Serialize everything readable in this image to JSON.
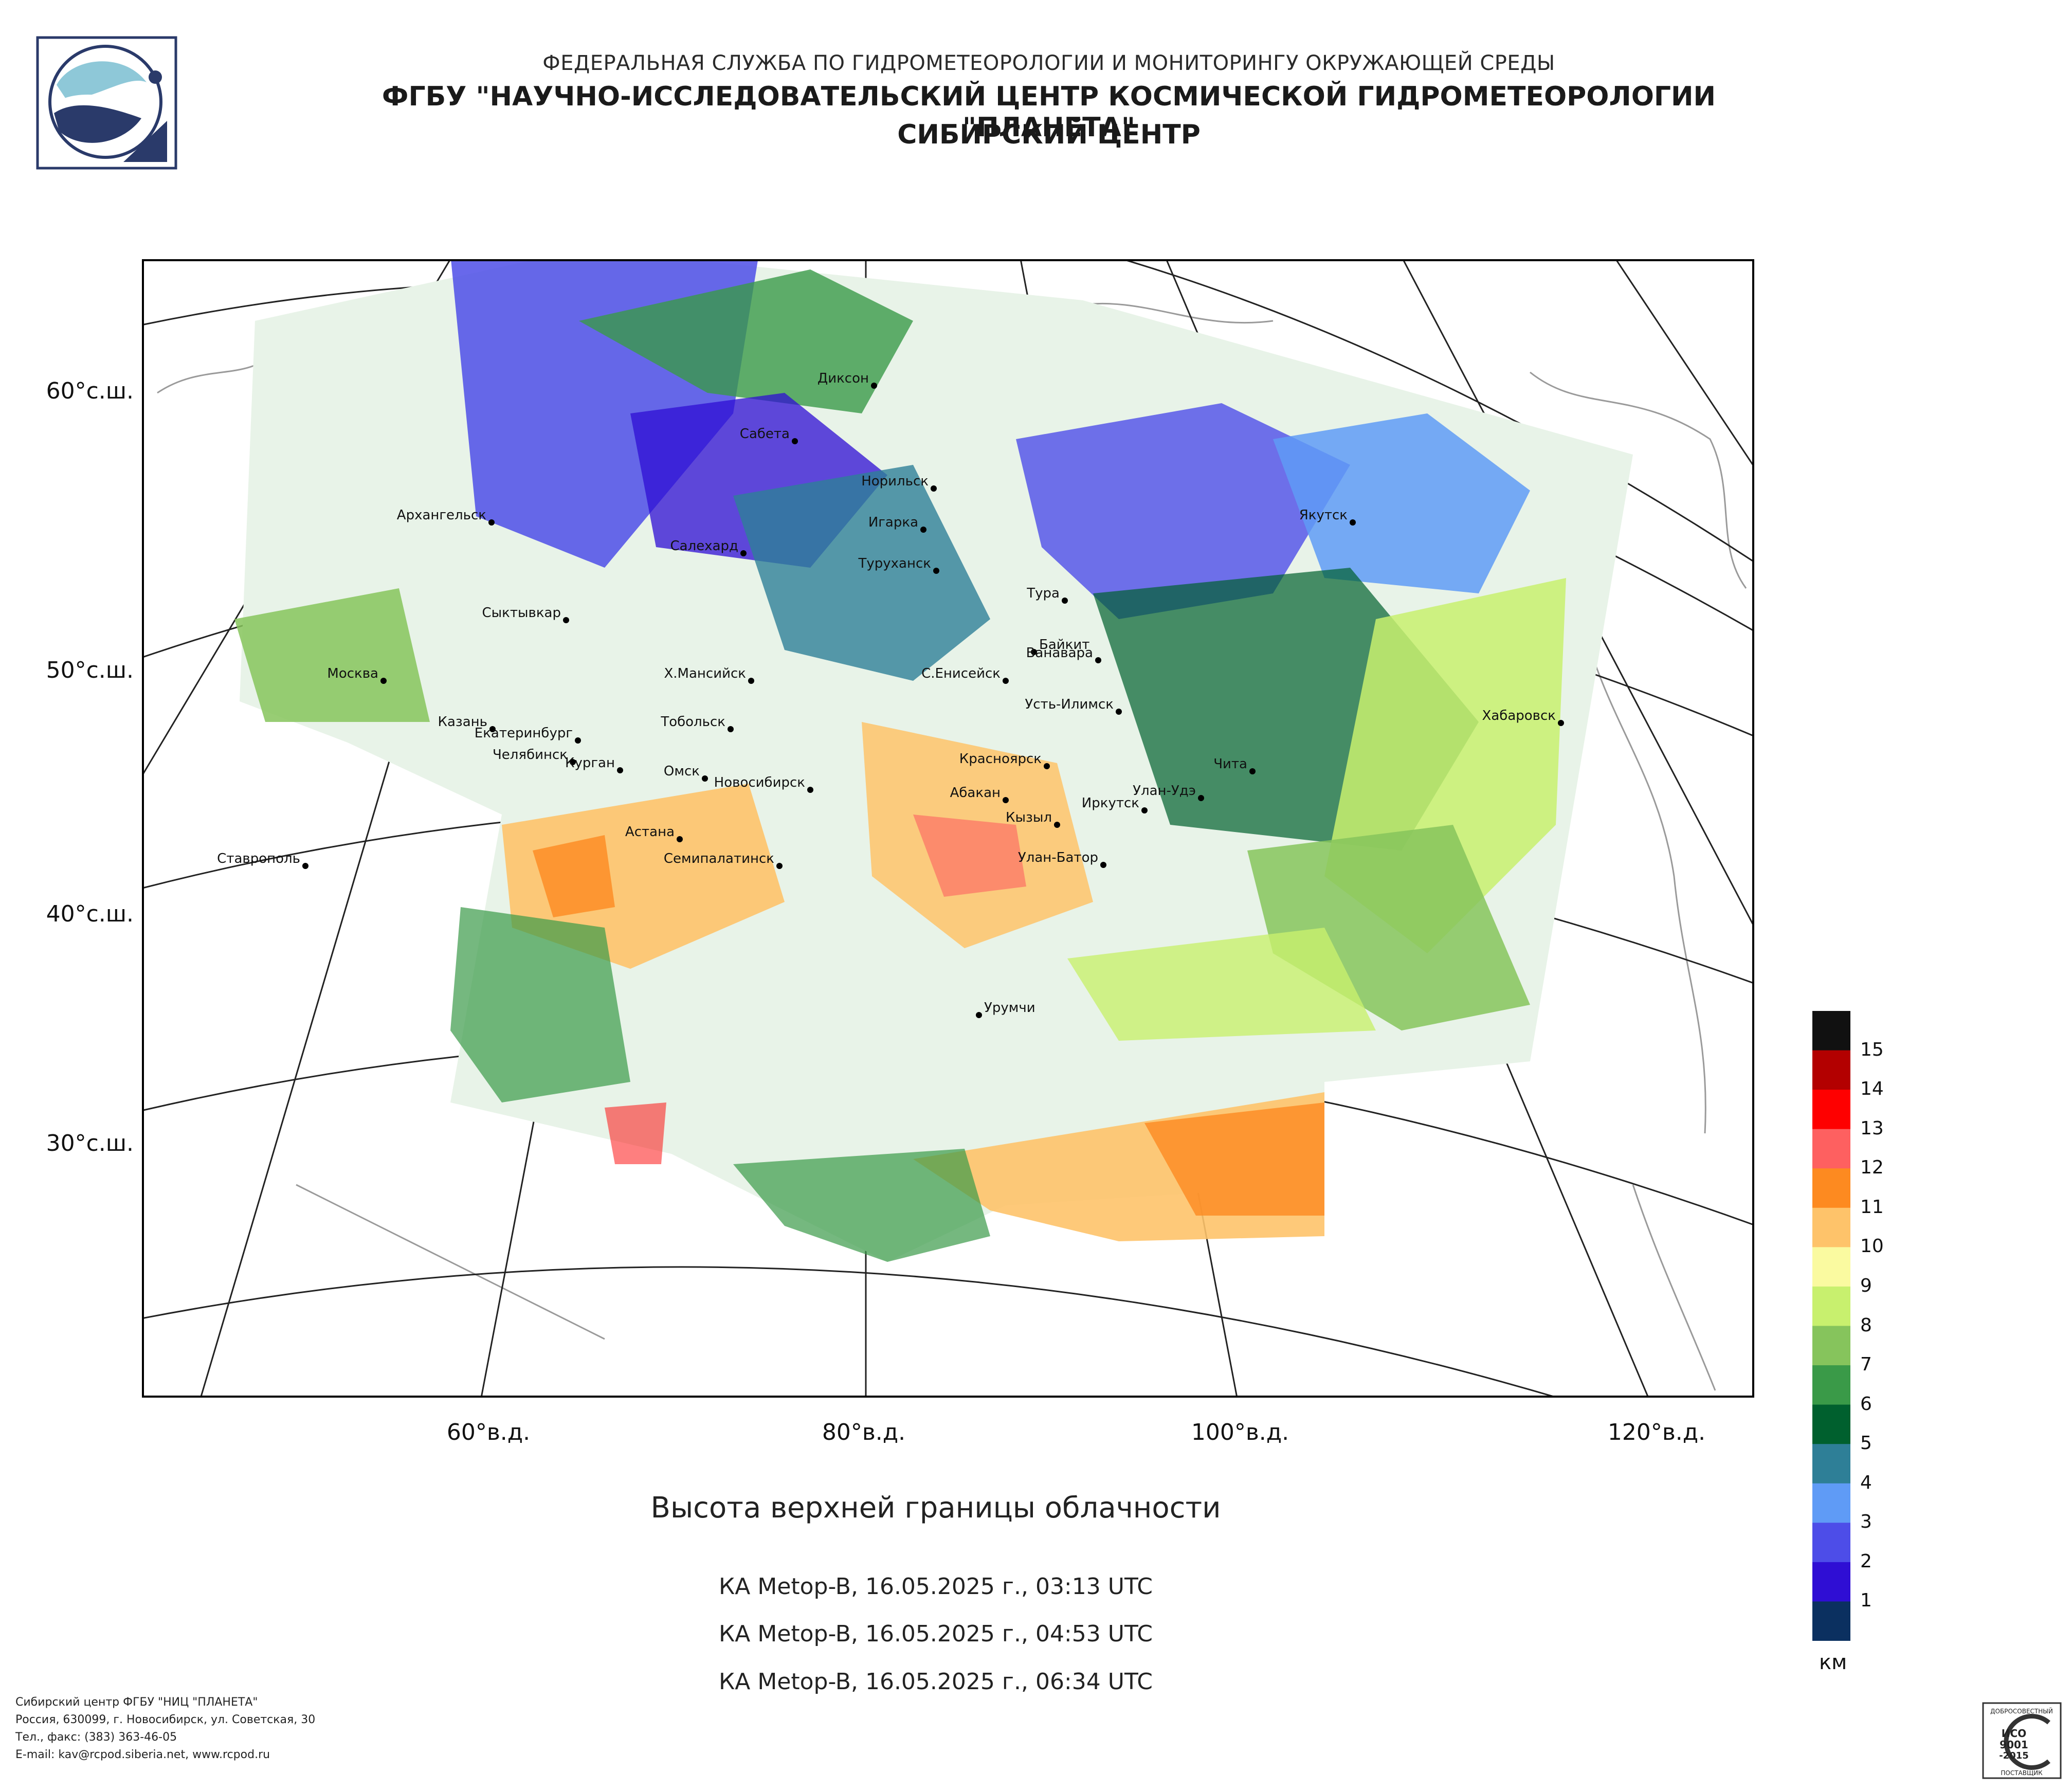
{
  "header": {
    "agency": "ФЕДЕРАЛЬНАЯ СЛУЖБА ПО ГИДРОМЕТЕОРОЛОГИИ И МОНИТОРИНГУ ОКРУЖАЮЩЕЙ СРЕДЫ",
    "institute": "ФГБУ \"НАУЧНО-ИССЛЕДОВАТЕЛЬСКИЙ ЦЕНТР КОСМИЧЕСКОЙ ГИДРОМЕТЕОРОЛОГИИ \"ПЛАНЕТА\"",
    "center": "СИБИРСКИЙ ЦЕНТР"
  },
  "map": {
    "lat_labels": [
      "60°с.ш.",
      "50°с.ш.",
      "40°с.ш.",
      "30°с.ш."
    ],
    "lon_labels": [
      "60°в.д.",
      "80°в.д.",
      "100°в.д.",
      "120°в.д."
    ],
    "cities": [
      "Диксон",
      "Сабета",
      "Норильск",
      "Игарка",
      "Туруханск",
      "Тура",
      "Якутск",
      "Архангельск",
      "Салехард",
      "Сыктывкар",
      "Байкит",
      "Ванавара",
      "Москва",
      "Х.Мансийск",
      "С.Енисейск",
      "Усть-Илимск",
      "Хабаровск",
      "Казань",
      "Тобольск",
      "Екатеринбург",
      "Челябинск",
      "Курган",
      "Красноярск",
      "Чита",
      "Омск",
      "Новосибирск",
      "Абакан",
      "Улан-Удэ",
      "Иркутск",
      "Кызыл",
      "Астана",
      "Ставрополь",
      "Семипалатинск",
      "Улан-Батор",
      "Урумчи"
    ],
    "cloud_palette": [
      "#0b3060",
      "#2f0ed4",
      "#4d4de8",
      "#5f9bf6",
      "#2e7f97",
      "#00602e",
      "#3a9a48",
      "#86c45c",
      "#c8f06e",
      "#fafaa0",
      "#fec36a",
      "#fd8a20",
      "#fe6060",
      "#fe0000",
      "#b30000",
      "#111111"
    ]
  },
  "product_title": "Высота верхней границы облачности",
  "passes": [
    "КА Metop-B, 16.05.2025 г., 03:13 UTC",
    "КА Metop-B, 16.05.2025 г., 04:53 UTC",
    "КА Metop-B, 16.05.2025 г., 06:34 UTC"
  ],
  "legend": {
    "labels": [
      "15",
      "14",
      "13",
      "12",
      "11",
      "10",
      "9",
      "8",
      "7",
      "6",
      "5",
      "4",
      "3",
      "2",
      "1"
    ],
    "unit": "км",
    "colors": [
      "#111111",
      "#b30000",
      "#fe0000",
      "#fe6060",
      "#fd8a20",
      "#fec36a",
      "#fafaa0",
      "#c8f06e",
      "#86c45c",
      "#3a9a48",
      "#00602e",
      "#2e7f97",
      "#5f9bf6",
      "#4d4de8",
      "#2f0ed4",
      "#0b3060"
    ]
  },
  "footer": [
    "Сибирский центр ФГБУ \"НИЦ \"ПЛАНЕТА\"",
    "Россия, 630099, г. Новосибирск, ул. Советская, 30",
    "Тел., факс: (383) 363-46-05",
    "E-mail: kav@rcpod.siberia.net, www.rcpod.ru"
  ],
  "cert": {
    "top": "ДОБРОСОВЕСТНЫЙ",
    "iso": "ИСО",
    "num": "9001",
    "year": "-2015",
    "bottom": "ПОСТАВЩИК"
  }
}
